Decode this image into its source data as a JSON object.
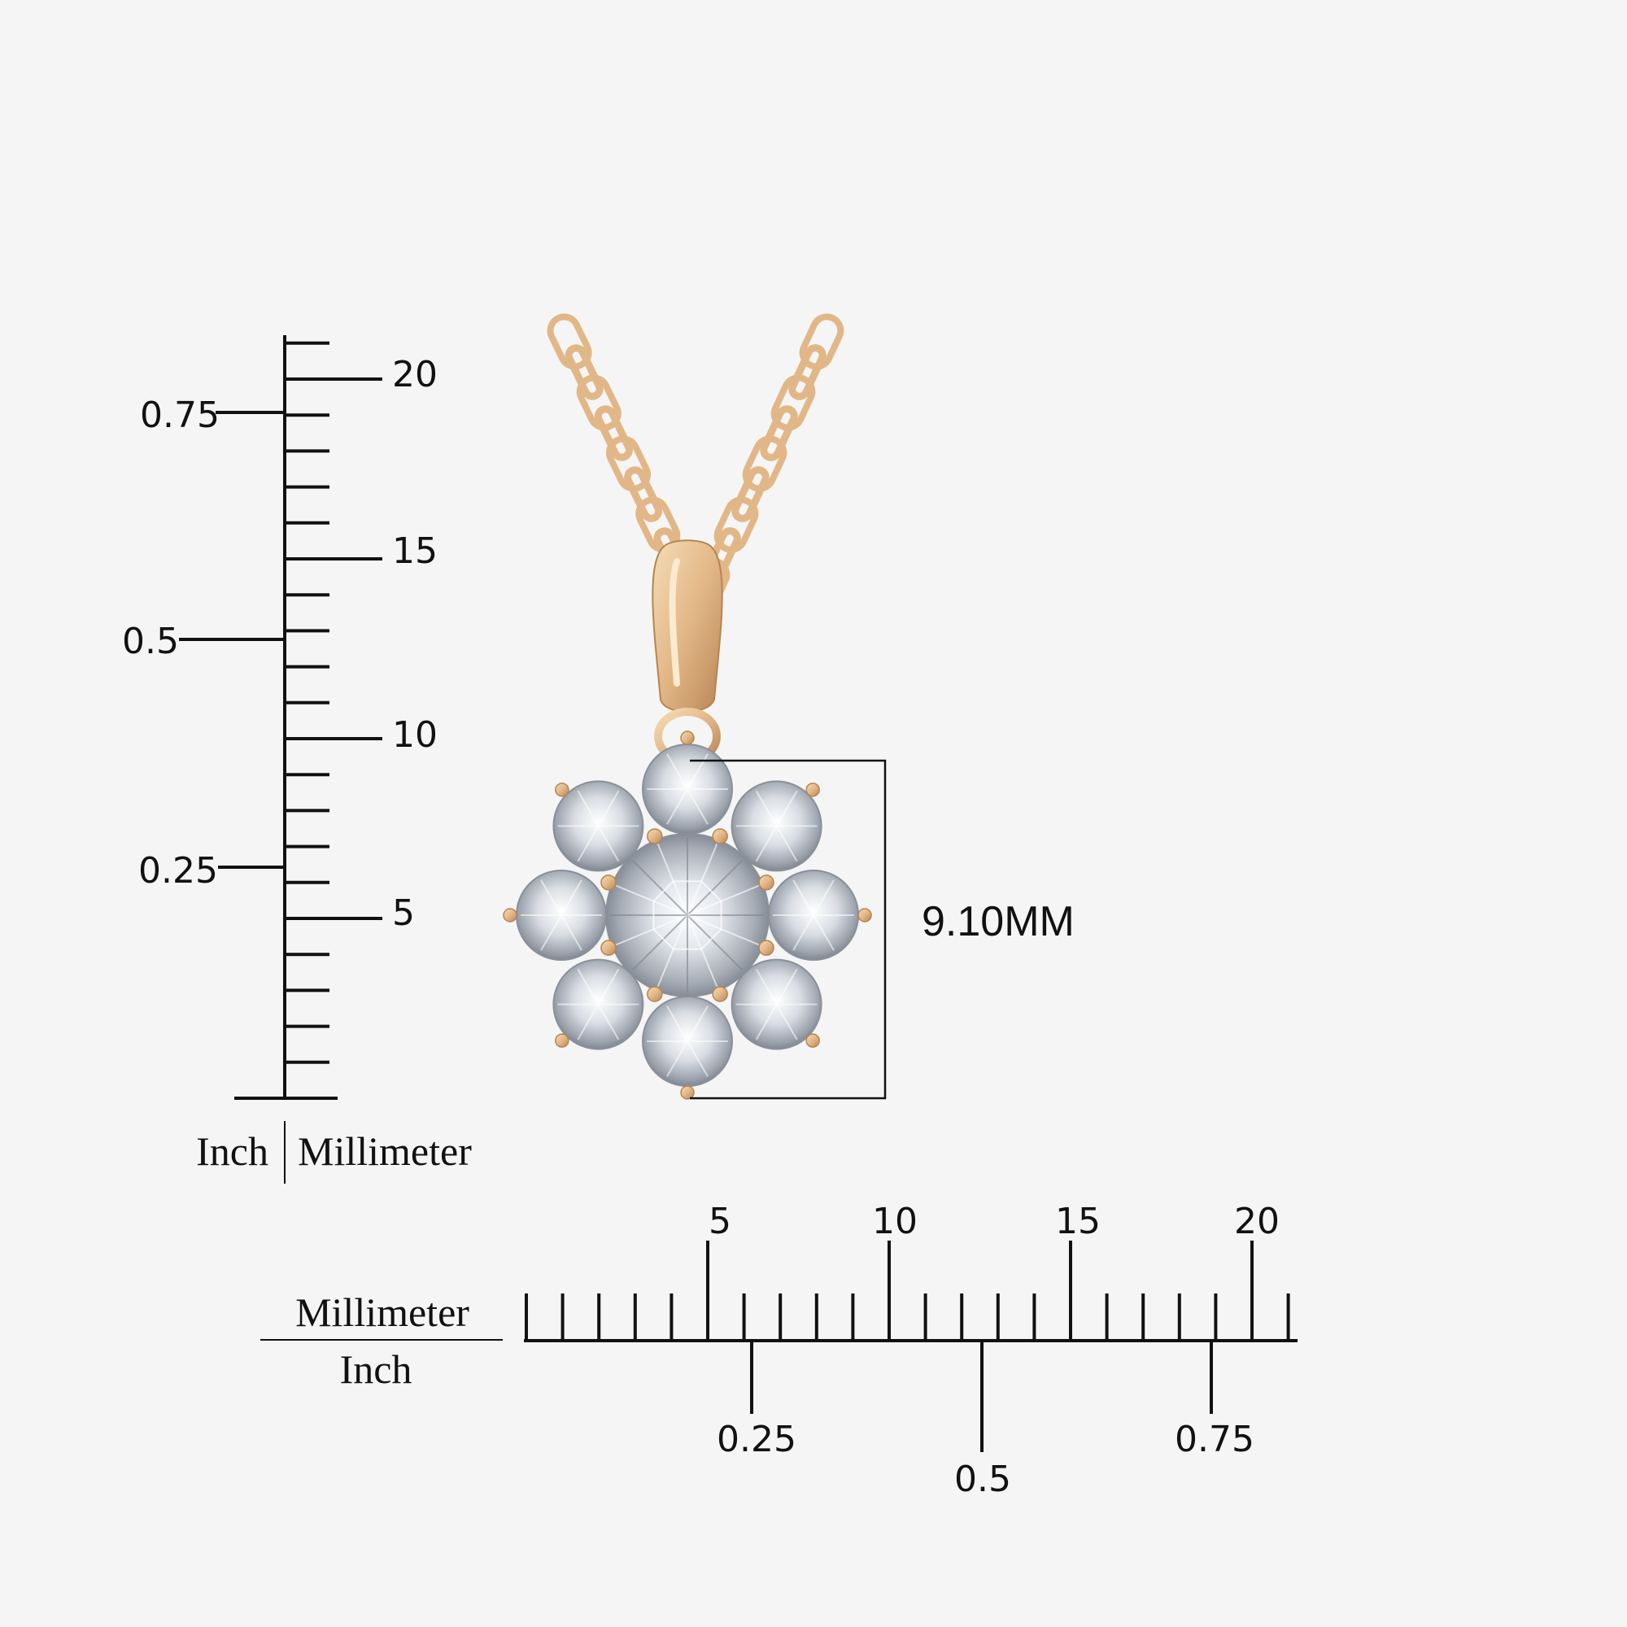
{
  "colors": {
    "background": "#f5f5f5",
    "gold": "#e6c195",
    "gold_dark": "#c9996a",
    "ink": "#111111"
  },
  "vertical_scale": {
    "mm_labels": [
      "20",
      "15",
      "10",
      "5"
    ],
    "inch_labels": [
      "0.75",
      "0.5",
      "0.25"
    ],
    "unit_left": "Inch",
    "unit_right": "Millimeter"
  },
  "horizontal_scale": {
    "mm_labels": [
      "5",
      "10",
      "15",
      "20"
    ],
    "inch_labels": [
      "0.25",
      "0.5",
      "0.75"
    ],
    "unit_top": "Millimeter",
    "unit_bottom": "Inch"
  },
  "pendant": {
    "dimension_label": "9.10MM"
  }
}
